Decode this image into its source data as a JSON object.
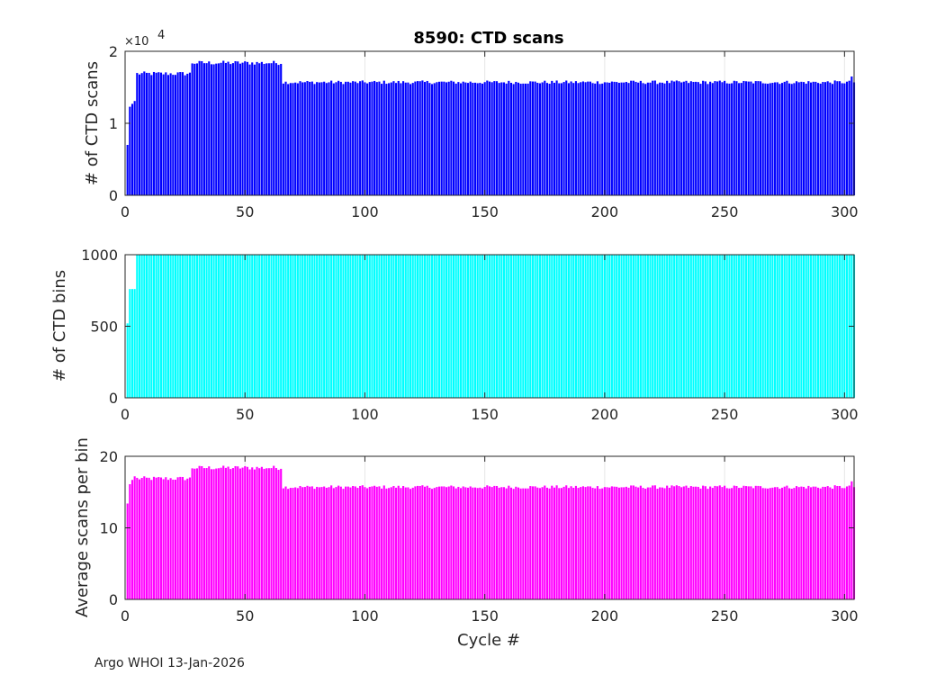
{
  "figure_title": "8590: CTD scans",
  "footer": "Argo WHOI 13-Jan-2026",
  "chart_data": [
    {
      "type": "bar",
      "title": "8590: CTD scans",
      "xlabel": "",
      "ylabel": "# of CTD scans",
      "color": "#0000ff",
      "xlim": [
        0,
        304
      ],
      "ylim": [
        0,
        20000
      ],
      "xticks": [
        0,
        50,
        100,
        150,
        200,
        250,
        300
      ],
      "yticks": [
        0,
        1,
        2
      ],
      "exponent_label": "×10",
      "exponent_power": "4",
      "series_rule": "cycles 1-4 ramp [7000, 12300, 12700, 13100]; cycles 5-27 ~16900 (±300); cycles 28-65 ~18400 (±300); cycles 66-304 ~15700 (±250); cycle 303 = 16500"
    },
    {
      "type": "bar",
      "title": "",
      "xlabel": "",
      "ylabel": "# of CTD bins",
      "color": "#00ffff",
      "xlim": [
        0,
        304
      ],
      "ylim": [
        0,
        1000
      ],
      "xticks": [
        0,
        50,
        100,
        150,
        200,
        250,
        300
      ],
      "yticks": [
        0,
        500,
        1000
      ],
      "series_rule": "cycle 1 = 520; cycles 2-4 = 760; cycles 5-304 = 1000"
    },
    {
      "type": "bar",
      "title": "",
      "xlabel": "Cycle #",
      "ylabel": "Average scans per bin",
      "color": "#ff00ff",
      "xlim": [
        0,
        304
      ],
      "ylim": [
        0,
        20
      ],
      "xticks": [
        0,
        50,
        100,
        150,
        200,
        250,
        300
      ],
      "yticks": [
        0,
        10,
        20
      ],
      "series_rule": "cycles 1-4 [13.4, 16.1, 16.7, 17.2]; cycles 5-27 ~16.9; cycles 28-65 ~18.4; cycles 66-304 ~15.7; cycle 303 = 16.5"
    }
  ]
}
